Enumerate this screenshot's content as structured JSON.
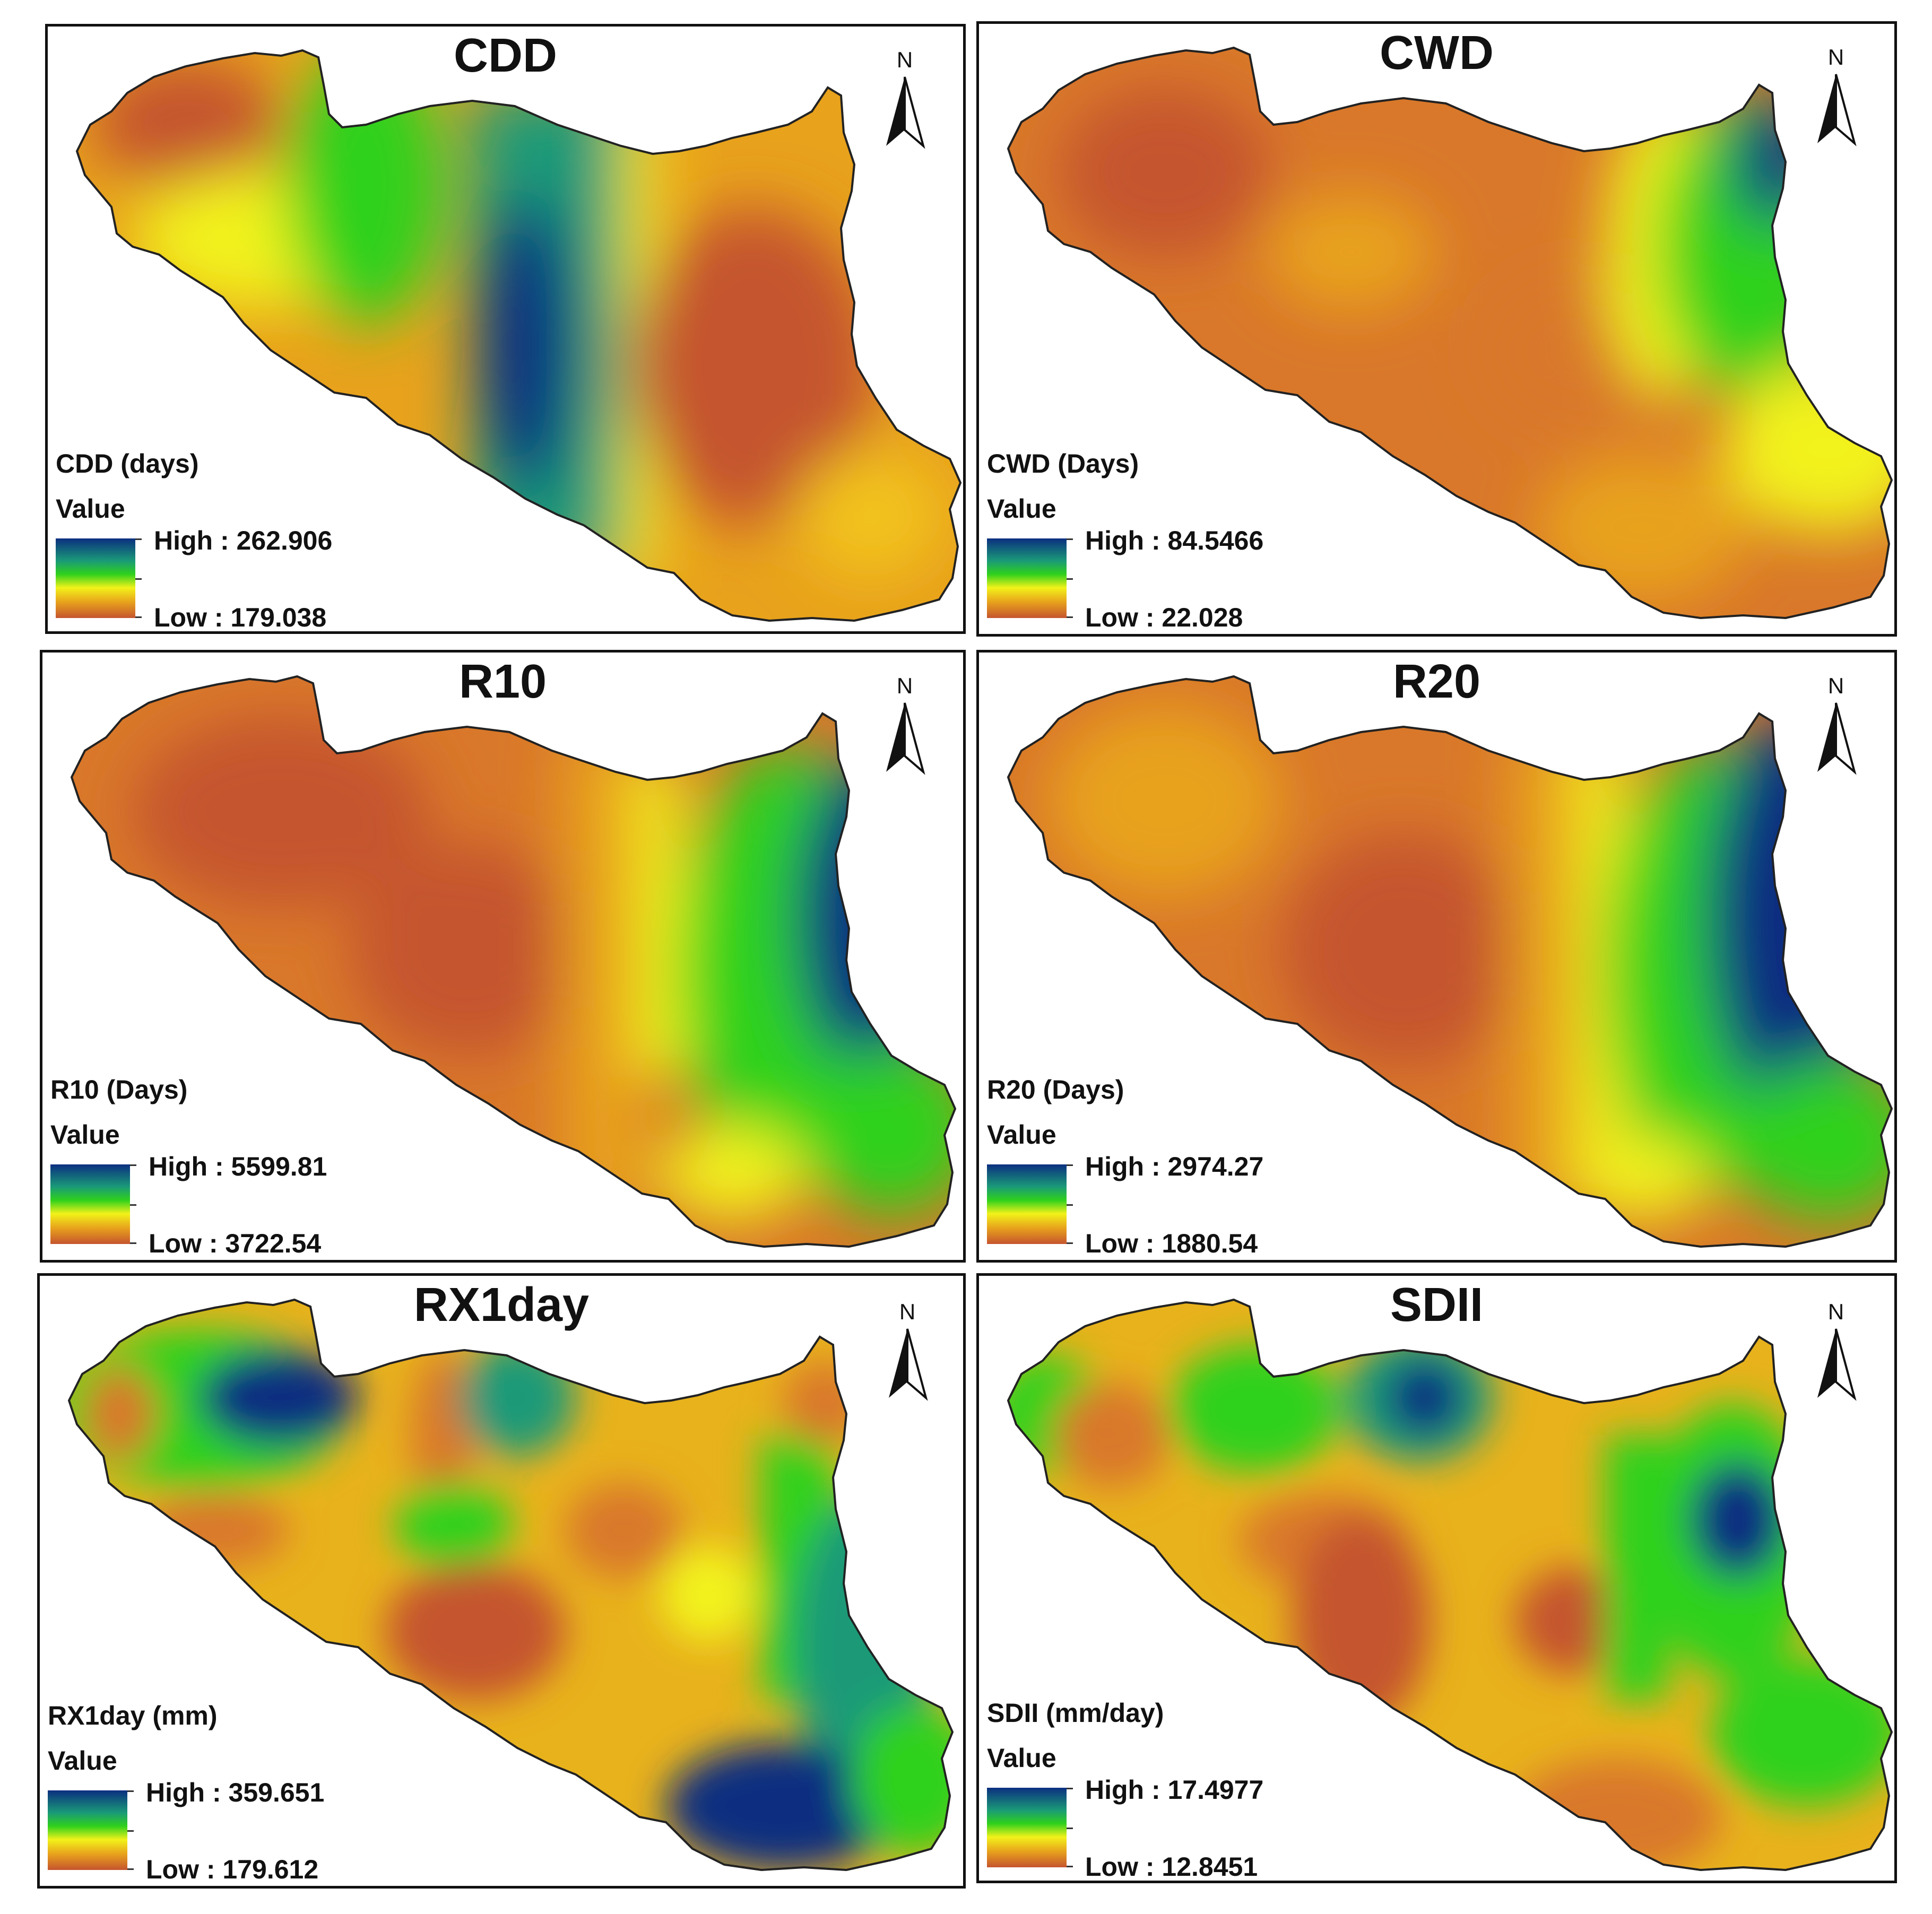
{
  "north_label": "N",
  "legend_value_label": "Value",
  "ramp_colors": [
    "#0b2f80",
    "#1a9a78",
    "#2fd11c",
    "#f2f21a",
    "#e8a21c",
    "#c5542e"
  ],
  "panels": [
    {
      "id": "cdd",
      "title": "CDD",
      "legend_name": "CDD (days)",
      "high": "High : 262.906",
      "low": "Low : 179.038"
    },
    {
      "id": "cwd",
      "title": "CWD",
      "legend_name": "CWD (Days)",
      "high": "High : 84.5466",
      "low": "Low : 22.028"
    },
    {
      "id": "r10",
      "title": "R10",
      "legend_name": "R10 (Days)",
      "high": "High : 5599.81",
      "low": "Low : 3722.54"
    },
    {
      "id": "r20",
      "title": "R20",
      "legend_name": "R20 (Days)",
      "high": "High : 2974.27",
      "low": "Low : 1880.54"
    },
    {
      "id": "rx1day",
      "title": "RX1day",
      "legend_name": "RX1day (mm)",
      "high": "High : 359.651",
      "low": "Low : 179.612"
    },
    {
      "id": "sdii",
      "title": "SDII",
      "legend_name": "SDII (mm/day)",
      "high": "High : 17.4977",
      "low": "Low : 12.8451"
    }
  ]
}
